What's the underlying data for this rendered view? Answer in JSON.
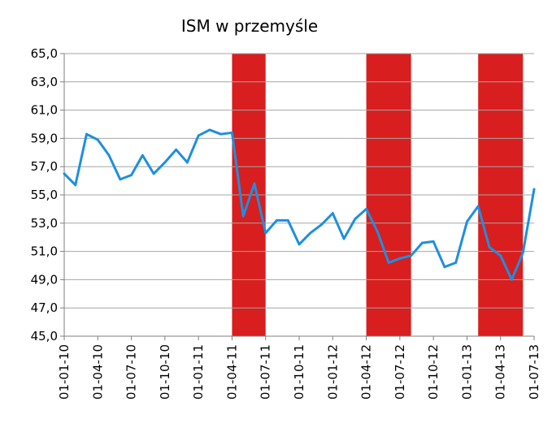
{
  "chart_data": {
    "type": "line",
    "title": "ISM w przemyśle",
    "xlabel": "",
    "ylabel": "",
    "ylim": [
      45.0,
      65.0
    ],
    "y_ticks": [
      "45,0",
      "47,0",
      "49,0",
      "51,0",
      "53,0",
      "55,0",
      "57,0",
      "59,0",
      "61,0",
      "63,0",
      "65,0"
    ],
    "x_tick_labels": [
      "01-01-10",
      "01-04-10",
      "01-07-10",
      "01-10-10",
      "01-01-11",
      "01-04-11",
      "01-07-11",
      "01-10-11",
      "01-01-12",
      "01-04-12",
      "01-07-12",
      "01-10-12",
      "01-01-13",
      "01-04-13",
      "01-07-13"
    ],
    "grid": true,
    "line_color": "#1e8fdf",
    "band_color": "#d81e1e",
    "x": [
      "2010-01",
      "2010-02",
      "2010-03",
      "2010-04",
      "2010-05",
      "2010-06",
      "2010-07",
      "2010-08",
      "2010-09",
      "2010-10",
      "2010-11",
      "2010-12",
      "2011-01",
      "2011-02",
      "2011-03",
      "2011-04",
      "2011-05",
      "2011-06",
      "2011-07",
      "2011-08",
      "2011-09",
      "2011-10",
      "2011-11",
      "2011-12",
      "2012-01",
      "2012-02",
      "2012-03",
      "2012-04",
      "2012-05",
      "2012-06",
      "2012-07",
      "2012-08",
      "2012-09",
      "2012-10",
      "2012-11",
      "2012-12",
      "2013-01",
      "2013-02",
      "2013-03",
      "2013-04",
      "2013-05",
      "2013-06",
      "2013-07"
    ],
    "series": [
      {
        "values": [
          56.5,
          55.7,
          59.3,
          58.9,
          57.8,
          56.1,
          56.4,
          57.8,
          56.5,
          57.3,
          58.2,
          57.3,
          59.2,
          59.6,
          59.3,
          59.4,
          53.5,
          55.8,
          52.3,
          53.2,
          53.2,
          51.5,
          52.3,
          52.9,
          53.7,
          51.9,
          53.3,
          54.0,
          52.4,
          50.2,
          50.5,
          50.7,
          51.6,
          51.7,
          49.9,
          50.2,
          53.1,
          54.2,
          51.3,
          50.7,
          49.0,
          50.9,
          55.4
        ]
      }
    ],
    "highlight_periods": [
      [
        "2011-04",
        "2011-07"
      ],
      [
        "2012-04",
        "2012-08"
      ],
      [
        "2013-02",
        "2013-06"
      ]
    ]
  }
}
